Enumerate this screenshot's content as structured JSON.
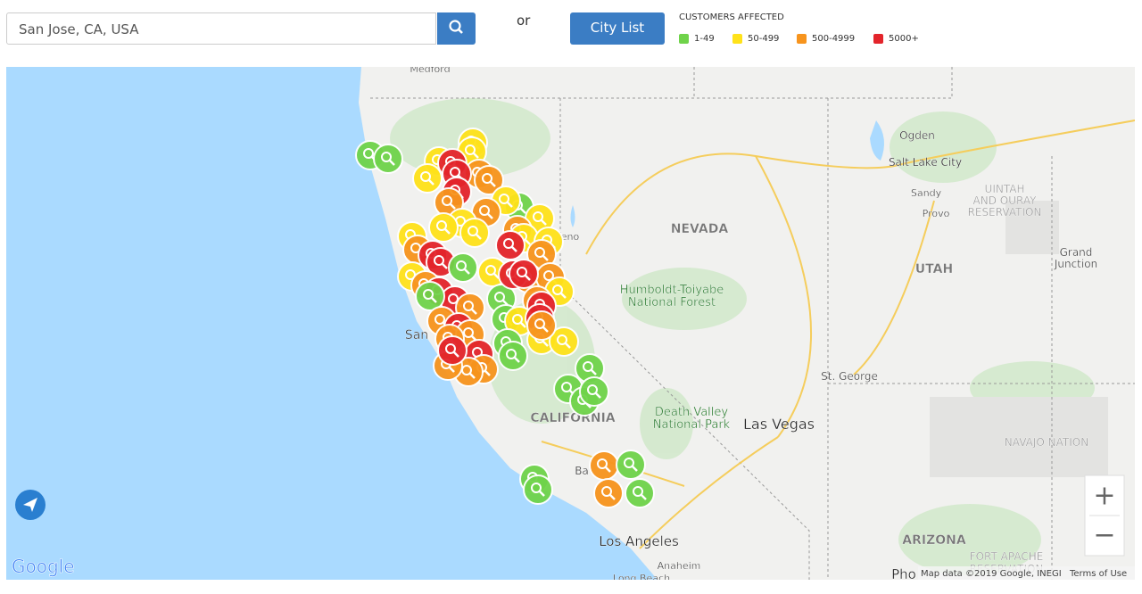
{
  "search": {
    "value": "San Jose, CA, USA"
  },
  "separator": "or",
  "city_list_button": "City List",
  "legend": {
    "title": "CUSTOMERS AFFECTED",
    "items": [
      {
        "label": "1-49",
        "color": "#6fd34a"
      },
      {
        "label": "50-499",
        "color": "#ffe21a"
      },
      {
        "label": "500-4999",
        "color": "#f7941d"
      },
      {
        "label": "5000+",
        "color": "#e3242b"
      }
    ]
  },
  "map": {
    "labels": [
      "Medford",
      "Ogden",
      "Salt Lake City",
      "Sandy",
      "Provo",
      "UINTAH",
      "AND OURAY",
      "RESERVATION",
      "NEVADA",
      "Humboldt-Toiyabe",
      "National Forest",
      "UTAH",
      "Grand",
      "Junction",
      "San",
      "St. George",
      "CALIFORNIA",
      "Death Valley",
      "National Park",
      "Las Vegas",
      "NAVAJO NATION",
      "Los Angeles",
      "Anaheim",
      "Long Beach",
      "ARIZONA",
      "FORT APACHE",
      "RESERVATION",
      "Pho",
      "Ba",
      "eno"
    ],
    "zoom_in": "+",
    "zoom_out": "−",
    "logo": "Google",
    "attribution": "Map data ©2019 Google, INEGI",
    "terms": "Terms of Use"
  }
}
